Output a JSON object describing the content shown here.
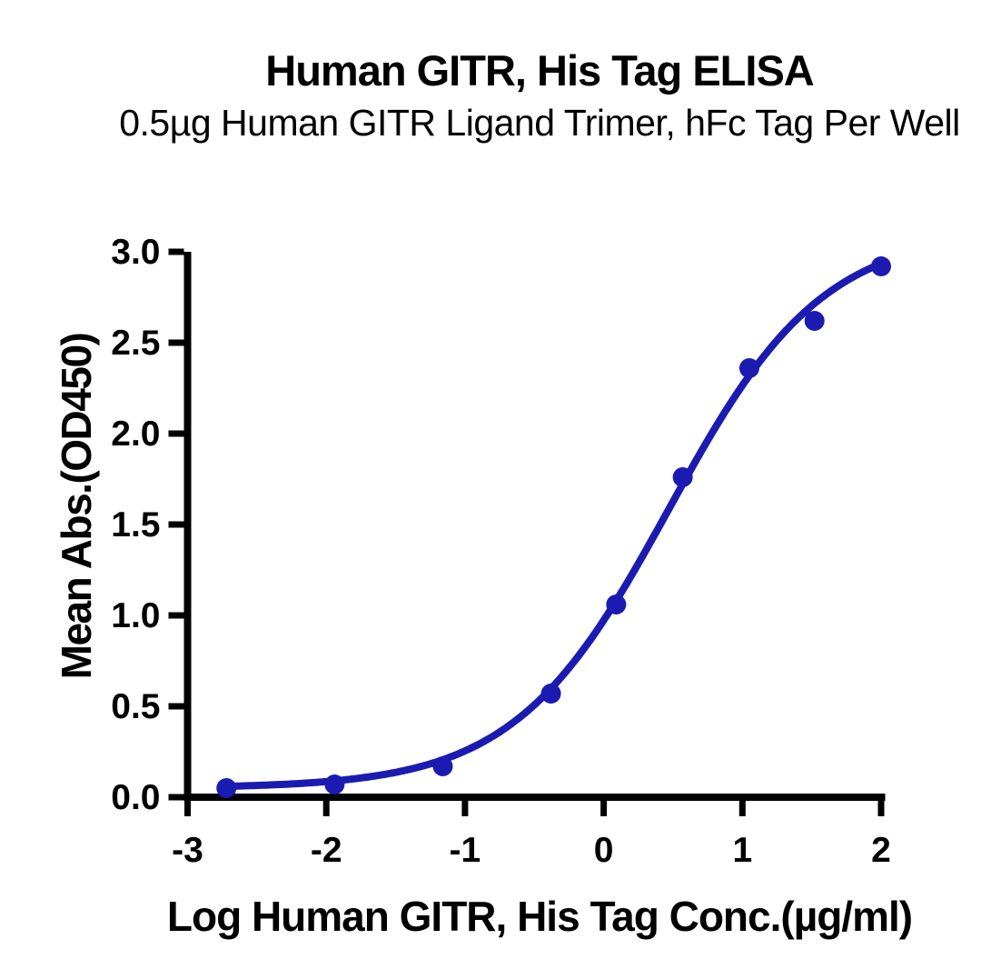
{
  "chart_data": {
    "type": "scatter",
    "title": "Human GITR, His Tag ELISA",
    "subtitle": "0.5µg Human GITR Ligand Trimer, hFc Tag Per Well",
    "xlabel": "Log Human GITR, His Tag Conc.(µg/ml)",
    "ylabel": "Mean Abs.(OD450)",
    "xlim": [
      -3,
      2
    ],
    "ylim": [
      0,
      3
    ],
    "x_ticks": [
      -3,
      -2,
      -1,
      0,
      1,
      2
    ],
    "x_tick_labels": [
      "-3",
      "-2",
      "-1",
      "0",
      "1",
      "2"
    ],
    "y_ticks": [
      0,
      0.5,
      1,
      1.5,
      2,
      2.5,
      3
    ],
    "y_tick_labels": [
      "0.0",
      "0.5",
      "1.0",
      "1.5",
      "2.0",
      "2.5",
      "3.0"
    ],
    "grid": false,
    "legend": false,
    "series": [
      {
        "x": [
          -2.72,
          -1.94,
          -1.16,
          -0.38,
          0.09,
          0.57,
          1.05,
          1.52,
          2.0
        ],
        "y": [
          0.05,
          0.07,
          0.17,
          0.57,
          1.06,
          1.76,
          2.36,
          2.62,
          2.92
        ],
        "marker": "circle"
      }
    ],
    "fit_curve": {
      "model": "4PL",
      "bottom": 0.05,
      "top": 3.12,
      "log_ec50": 0.47,
      "hill": 0.78,
      "x_range": [
        -2.73,
        2.0
      ]
    },
    "colors": {
      "curve": "#1B1BB2",
      "points": "#1B1BB2",
      "axis": "#000000",
      "text": "#000000",
      "background": "#FFFFFF"
    }
  }
}
